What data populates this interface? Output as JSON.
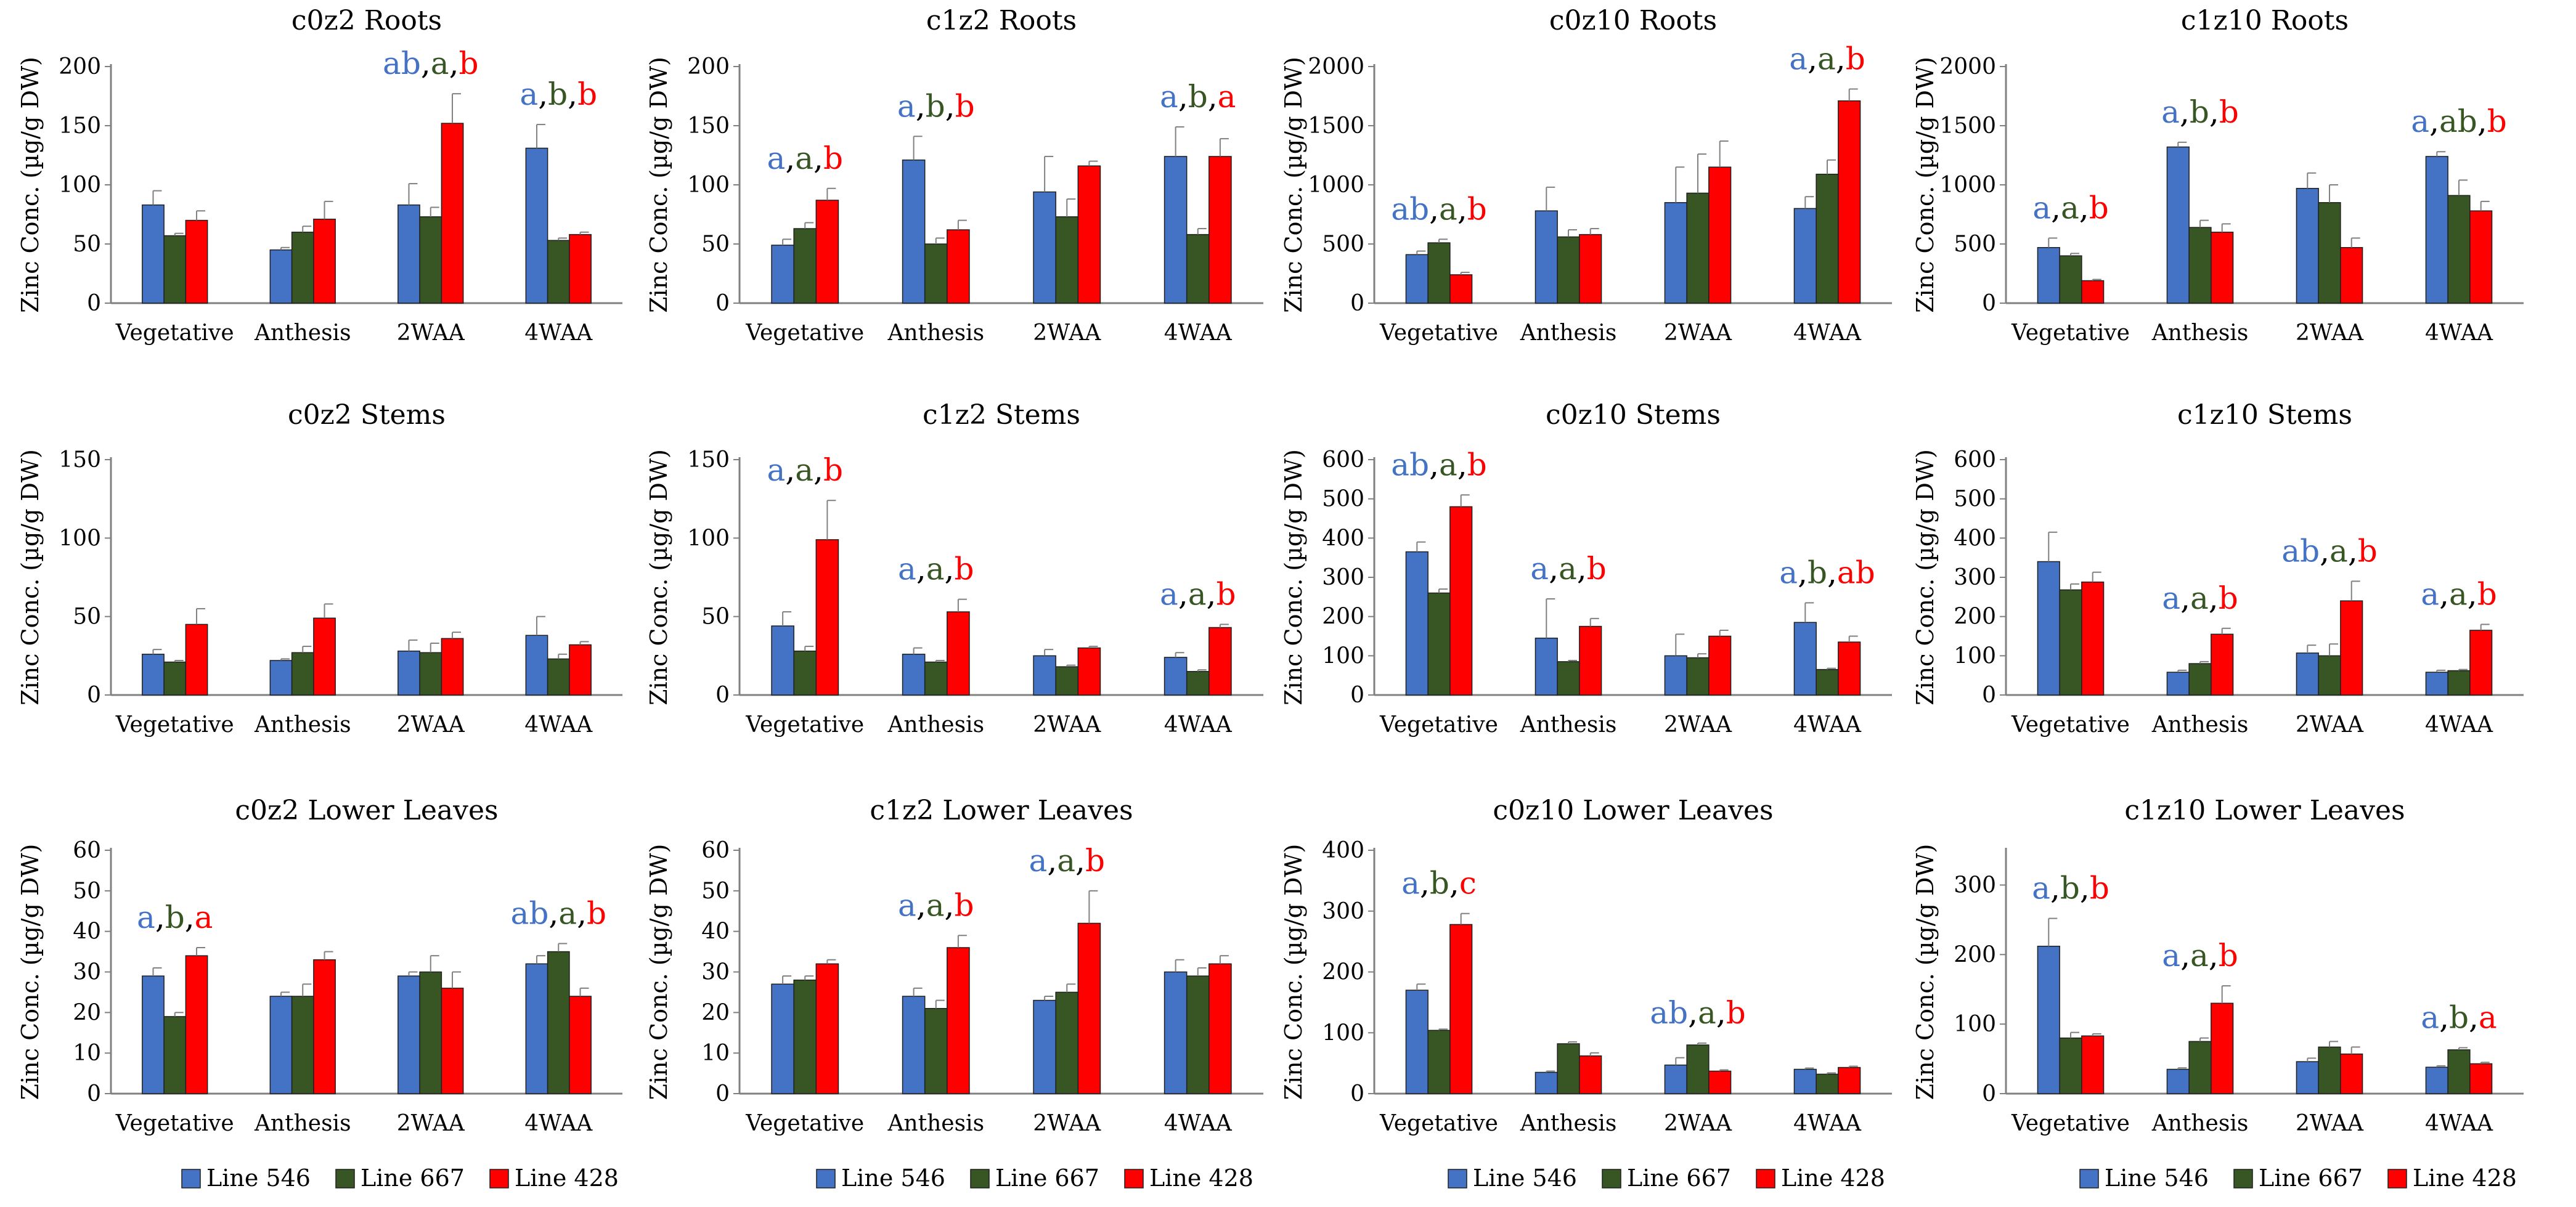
{
  "colors": {
    "line546": "#4472C4",
    "line667": "#375623",
    "line428": "#FF0000",
    "axis": "#808080",
    "error": "#808080"
  },
  "legend": [
    "Line 546",
    "Line 667",
    "Line 428"
  ],
  "chart_data": [
    {
      "type": "bar",
      "title": "c0z2 Roots",
      "ylabel": "Zinc Conc. (µg/g DW)",
      "ylim": [
        0,
        200
      ],
      "yticks": [
        0,
        50,
        100,
        150,
        200
      ],
      "categories": [
        "Vegetative",
        "Anthesis",
        "2WAA",
        "4WAA"
      ],
      "series": [
        {
          "name": "Line 546",
          "values": [
            83,
            45,
            83,
            131
          ],
          "errors": [
            12,
            2,
            18,
            20
          ]
        },
        {
          "name": "Line 667",
          "values": [
            57,
            60,
            73,
            53
          ],
          "errors": [
            2,
            5,
            8,
            2
          ]
        },
        {
          "name": "Line 428",
          "values": [
            70,
            71,
            152,
            58
          ],
          "errors": [
            8,
            15,
            25,
            2
          ]
        }
      ],
      "annotations": [
        null,
        null,
        [
          "ab",
          "a",
          "b"
        ],
        [
          "a",
          "b",
          "b"
        ]
      ]
    },
    {
      "type": "bar",
      "title": "c1z2 Roots",
      "ylabel": "Zinc Conc. (µg/g DW)",
      "ylim": [
        0,
        200
      ],
      "yticks": [
        0,
        50,
        100,
        150,
        200
      ],
      "categories": [
        "Vegetative",
        "Anthesis",
        "2WAA",
        "4WAA"
      ],
      "series": [
        {
          "name": "Line 546",
          "values": [
            49,
            121,
            94,
            124
          ],
          "errors": [
            5,
            20,
            30,
            25
          ]
        },
        {
          "name": "Line 667",
          "values": [
            63,
            50,
            73,
            58
          ],
          "errors": [
            5,
            5,
            15,
            5
          ]
        },
        {
          "name": "Line 428",
          "values": [
            87,
            62,
            116,
            124
          ],
          "errors": [
            10,
            8,
            4,
            15
          ]
        }
      ],
      "annotations": [
        [
          "a",
          "a",
          "b"
        ],
        [
          "a",
          "b",
          "b"
        ],
        null,
        [
          "a",
          "b",
          "a"
        ]
      ]
    },
    {
      "type": "bar",
      "title": "c0z10 Roots",
      "ylabel": "Zinc Conc. (µg/g DW)",
      "ylim": [
        0,
        2000
      ],
      "yticks": [
        0,
        500,
        1000,
        1500,
        2000
      ],
      "categories": [
        "Vegetative",
        "Anthesis",
        "2WAA",
        "4WAA"
      ],
      "series": [
        {
          "name": "Line 546",
          "values": [
            410,
            780,
            850,
            800
          ],
          "errors": [
            30,
            200,
            300,
            100
          ]
        },
        {
          "name": "Line 667",
          "values": [
            510,
            560,
            930,
            1090
          ],
          "errors": [
            30,
            60,
            330,
            120
          ]
        },
        {
          "name": "Line 428",
          "values": [
            240,
            580,
            1150,
            1710
          ],
          "errors": [
            20,
            50,
            220,
            100
          ]
        }
      ],
      "annotations": [
        [
          "ab",
          "a",
          "b"
        ],
        null,
        null,
        [
          "a",
          "a",
          "b"
        ]
      ]
    },
    {
      "type": "bar",
      "title": "c1z10 Roots",
      "ylabel": "Zinc Conc. (µg/g DW)",
      "ylim": [
        0,
        2000
      ],
      "yticks": [
        0,
        500,
        1000,
        1500,
        2000
      ],
      "categories": [
        "Vegetative",
        "Anthesis",
        "2WAA",
        "4WAA"
      ],
      "series": [
        {
          "name": "Line 546",
          "values": [
            470,
            1320,
            970,
            1240
          ],
          "errors": [
            80,
            40,
            130,
            40
          ]
        },
        {
          "name": "Line 667",
          "values": [
            400,
            640,
            850,
            910
          ],
          "errors": [
            20,
            60,
            150,
            130
          ]
        },
        {
          "name": "Line 428",
          "values": [
            190,
            600,
            470,
            780
          ],
          "errors": [
            10,
            70,
            80,
            80
          ]
        }
      ],
      "annotations": [
        [
          "a",
          "a",
          "b"
        ],
        [
          "a",
          "b",
          "b"
        ],
        null,
        [
          "a",
          "ab",
          "b"
        ]
      ]
    },
    {
      "type": "bar",
      "title": "c0z2 Stems",
      "ylabel": "Zinc Conc. (µg/g DW)",
      "ylim": [
        0,
        150
      ],
      "yticks": [
        0,
        50,
        100,
        150
      ],
      "categories": [
        "Vegetative",
        "Anthesis",
        "2WAA",
        "4WAA"
      ],
      "series": [
        {
          "name": "Line 546",
          "values": [
            26,
            22,
            28,
            38
          ],
          "errors": [
            3,
            1,
            7,
            12
          ]
        },
        {
          "name": "Line 667",
          "values": [
            21,
            27,
            27,
            23
          ],
          "errors": [
            1,
            4,
            6,
            3
          ]
        },
        {
          "name": "Line 428",
          "values": [
            45,
            49,
            36,
            32
          ],
          "errors": [
            10,
            9,
            4,
            2
          ]
        }
      ],
      "annotations": [
        null,
        null,
        null,
        null
      ]
    },
    {
      "type": "bar",
      "title": "c1z2 Stems",
      "ylabel": "Zinc Conc. (µg/g DW)",
      "ylim": [
        0,
        150
      ],
      "yticks": [
        0,
        50,
        100,
        150
      ],
      "categories": [
        "Vegetative",
        "Anthesis",
        "2WAA",
        "4WAA"
      ],
      "series": [
        {
          "name": "Line 546",
          "values": [
            44,
            26,
            25,
            24
          ],
          "errors": [
            9,
            4,
            4,
            3
          ]
        },
        {
          "name": "Line 667",
          "values": [
            28,
            21,
            18,
            15
          ],
          "errors": [
            3,
            1,
            1,
            1
          ]
        },
        {
          "name": "Line 428",
          "values": [
            99,
            53,
            30,
            43
          ],
          "errors": [
            25,
            8,
            1,
            2
          ]
        }
      ],
      "annotations": [
        [
          "a",
          "a",
          "b"
        ],
        [
          "a",
          "a",
          "b"
        ],
        null,
        [
          "a",
          "a",
          "b"
        ]
      ]
    },
    {
      "type": "bar",
      "title": "c0z10 Stems",
      "ylabel": "Zinc Conc. (µg/g DW)",
      "ylim": [
        0,
        600
      ],
      "yticks": [
        0,
        100,
        200,
        300,
        400,
        500,
        600
      ],
      "categories": [
        "Vegetative",
        "Anthesis",
        "2WAA",
        "4WAA"
      ],
      "series": [
        {
          "name": "Line 546",
          "values": [
            365,
            145,
            100,
            185
          ],
          "errors": [
            25,
            100,
            55,
            50
          ]
        },
        {
          "name": "Line 667",
          "values": [
            260,
            85,
            95,
            65
          ],
          "errors": [
            10,
            3,
            10,
            3
          ]
        },
        {
          "name": "Line 428",
          "values": [
            480,
            175,
            150,
            135
          ],
          "errors": [
            30,
            20,
            15,
            15
          ]
        }
      ],
      "annotations": [
        [
          "ab",
          "a",
          "b"
        ],
        [
          "a",
          "a",
          "b"
        ],
        null,
        [
          "a",
          "b",
          "ab"
        ]
      ]
    },
    {
      "type": "bar",
      "title": "c1z10 Stems",
      "ylabel": "Zinc Conc. (µg/g DW)",
      "ylim": [
        0,
        600
      ],
      "yticks": [
        0,
        100,
        200,
        300,
        400,
        500,
        600
      ],
      "categories": [
        "Vegetative",
        "Anthesis",
        "2WAA",
        "4WAA"
      ],
      "series": [
        {
          "name": "Line 546",
          "values": [
            340,
            58,
            107,
            58
          ],
          "errors": [
            75,
            5,
            20,
            5
          ]
        },
        {
          "name": "Line 667",
          "values": [
            268,
            80,
            100,
            62
          ],
          "errors": [
            15,
            5,
            30,
            3
          ]
        },
        {
          "name": "Line 428",
          "values": [
            288,
            155,
            240,
            165
          ],
          "errors": [
            25,
            15,
            50,
            15
          ]
        }
      ],
      "annotations": [
        null,
        [
          "a",
          "a",
          "b"
        ],
        [
          "ab",
          "a",
          "b"
        ],
        [
          "a",
          "a",
          "b"
        ]
      ]
    },
    {
      "type": "bar",
      "title": "c0z2 Lower Leaves",
      "ylabel": "Zinc Conc. (µg/g DW)",
      "ylim": [
        0,
        60
      ],
      "yticks": [
        0,
        10,
        20,
        30,
        40,
        50,
        60
      ],
      "categories": [
        "Vegetative",
        "Anthesis",
        "2WAA",
        "4WAA"
      ],
      "series": [
        {
          "name": "Line 546",
          "values": [
            29,
            24,
            29,
            32
          ],
          "errors": [
            2,
            1,
            1,
            2
          ]
        },
        {
          "name": "Line 667",
          "values": [
            19,
            24,
            30,
            35
          ],
          "errors": [
            1,
            3,
            4,
            2
          ]
        },
        {
          "name": "Line 428",
          "values": [
            34,
            33,
            26,
            24
          ],
          "errors": [
            2,
            2,
            4,
            2
          ]
        }
      ],
      "annotations": [
        [
          "a",
          "b",
          "a"
        ],
        null,
        null,
        [
          "ab",
          "a",
          "b"
        ]
      ]
    },
    {
      "type": "bar",
      "title": "c1z2 Lower Leaves",
      "ylabel": "Zinc Conc. (µg/g DW)",
      "ylim": [
        0,
        60
      ],
      "yticks": [
        0,
        10,
        20,
        30,
        40,
        50,
        60
      ],
      "categories": [
        "Vegetative",
        "Anthesis",
        "2WAA",
        "4WAA"
      ],
      "series": [
        {
          "name": "Line 546",
          "values": [
            27,
            24,
            23,
            30
          ],
          "errors": [
            2,
            2,
            1,
            3
          ]
        },
        {
          "name": "Line 667",
          "values": [
            28,
            21,
            25,
            29
          ],
          "errors": [
            1,
            2,
            2,
            2
          ]
        },
        {
          "name": "Line 428",
          "values": [
            32,
            36,
            42,
            32
          ],
          "errors": [
            1,
            3,
            8,
            2
          ]
        }
      ],
      "annotations": [
        null,
        [
          "a",
          "a",
          "b"
        ],
        [
          "a",
          "a",
          "b"
        ],
        null
      ]
    },
    {
      "type": "bar",
      "title": "c0z10 Lower Leaves",
      "ylabel": "Zinc Conc. (µg/g DW)",
      "ylim": [
        0,
        400
      ],
      "yticks": [
        0,
        100,
        200,
        300,
        400
      ],
      "categories": [
        "Vegetative",
        "Anthesis",
        "2WAA",
        "4WAA"
      ],
      "series": [
        {
          "name": "Line 546",
          "values": [
            170,
            35,
            47,
            40
          ],
          "errors": [
            10,
            2,
            12,
            2
          ]
        },
        {
          "name": "Line 667",
          "values": [
            104,
            82,
            80,
            32
          ],
          "errors": [
            2,
            3,
            3,
            2
          ]
        },
        {
          "name": "Line 428",
          "values": [
            278,
            62,
            37,
            43
          ],
          "errors": [
            18,
            5,
            2,
            2
          ]
        }
      ],
      "annotations": [
        [
          "a",
          "b",
          "c"
        ],
        null,
        [
          "ab",
          "a",
          "b"
        ],
        null
      ]
    },
    {
      "type": "bar",
      "title": "c1z10 Lower Leaves",
      "ylabel": "Zinc Conc. (µg/g DW)",
      "ylim": [
        0,
        350
      ],
      "yticks": [
        0,
        100,
        200,
        300
      ],
      "categories": [
        "Vegetative",
        "Anthesis",
        "2WAA",
        "4WAA"
      ],
      "series": [
        {
          "name": "Line 546",
          "values": [
            212,
            35,
            46,
            38
          ],
          "errors": [
            40,
            2,
            5,
            2
          ]
        },
        {
          "name": "Line 667",
          "values": [
            80,
            75,
            67,
            63
          ],
          "errors": [
            8,
            5,
            8,
            3
          ]
        },
        {
          "name": "Line 428",
          "values": [
            83,
            130,
            57,
            43
          ],
          "errors": [
            3,
            25,
            10,
            2
          ]
        }
      ],
      "annotations": [
        [
          "a",
          "b",
          "b"
        ],
        [
          "a",
          "a",
          "b"
        ],
        null,
        [
          "a",
          "b",
          "a"
        ]
      ]
    }
  ]
}
